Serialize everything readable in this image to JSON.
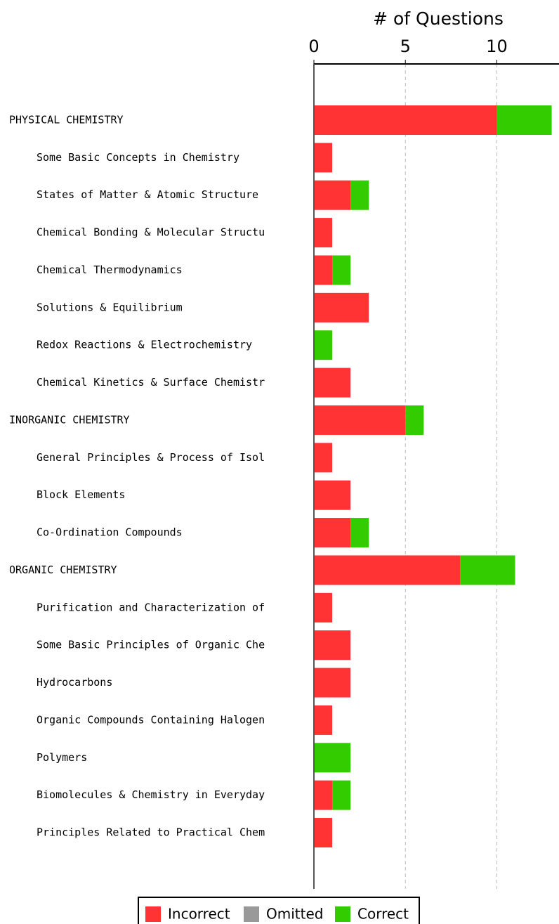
{
  "chart_data": {
    "type": "bar",
    "orientation": "horizontal",
    "stacked": true,
    "xlabel": "# of Questions",
    "xlim": [
      0,
      13.4
    ],
    "xticks": [
      0,
      5,
      10
    ],
    "grid": true,
    "legend": "bottom",
    "categories": [
      "PHYSICAL CHEMISTRY",
      "Some Basic Concepts in Chemistry",
      "States of Matter & Atomic Structure",
      "Chemical Bonding & Molecular Structu",
      "Chemical Thermodynamics",
      "Solutions & Equilibrium",
      "Redox Reactions & Electrochemistry",
      "Chemical Kinetics & Surface Chemistr",
      "INORGANIC CHEMISTRY",
      "General Principles & Process of Isol",
      "Block Elements",
      "Co-Ordination Compounds",
      "ORGANIC CHEMISTRY",
      "Purification and Characterization of",
      "Some Basic Principles of Organic Che",
      "Hydrocarbons",
      "Organic Compounds Containing Halogen",
      "Polymers",
      "Biomolecules & Chemistry in Everyday",
      "Principles Related to Practical Chem"
    ],
    "series": [
      {
        "name": "Incorrect",
        "color": "#ff3333",
        "values": [
          10,
          1,
          2,
          1,
          1,
          3,
          0,
          2,
          5,
          1,
          2,
          2,
          8,
          1,
          2,
          2,
          1,
          0,
          1,
          1
        ]
      },
      {
        "name": "Omitted",
        "color": "#999999",
        "values": [
          0,
          0,
          0,
          0,
          0,
          0,
          0,
          0,
          0,
          0,
          0,
          0,
          0,
          0,
          0,
          0,
          0,
          0,
          0,
          0
        ]
      },
      {
        "name": "Correct",
        "color": "#33cc00",
        "values": [
          3,
          0,
          1,
          0,
          1,
          0,
          1,
          0,
          1,
          0,
          0,
          1,
          3,
          0,
          0,
          0,
          0,
          2,
          1,
          0
        ]
      }
    ]
  }
}
